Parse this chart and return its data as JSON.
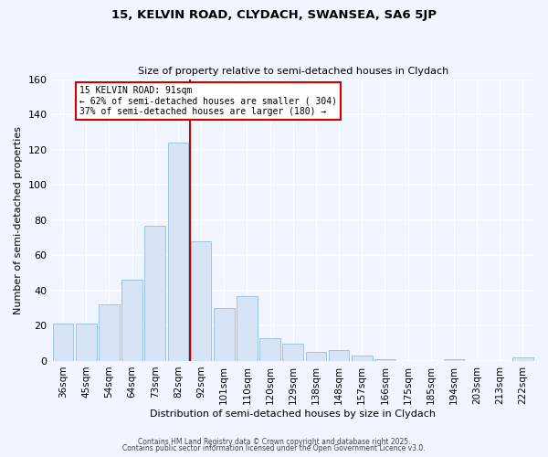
{
  "title": "15, KELVIN ROAD, CLYDACH, SWANSEA, SA6 5JP",
  "subtitle": "Size of property relative to semi-detached houses in Clydach",
  "xlabel": "Distribution of semi-detached houses by size in Clydach",
  "ylabel": "Number of semi-detached properties",
  "bar_labels": [
    "36sqm",
    "45sqm",
    "54sqm",
    "64sqm",
    "73sqm",
    "82sqm",
    "92sqm",
    "101sqm",
    "110sqm",
    "120sqm",
    "129sqm",
    "138sqm",
    "148sqm",
    "157sqm",
    "166sqm",
    "175sqm",
    "185sqm",
    "194sqm",
    "203sqm",
    "213sqm",
    "222sqm"
  ],
  "bar_values": [
    21,
    21,
    32,
    46,
    77,
    124,
    68,
    30,
    37,
    13,
    10,
    5,
    6,
    3,
    1,
    0,
    0,
    1,
    0,
    0,
    2
  ],
  "bar_color": "#d6e4f5",
  "bar_edge_color": "#9ec3e8",
  "vline_color": "#cc0000",
  "annotation_title": "15 KELVIN ROAD: 91sqm",
  "annotation_line1": "← 62% of semi-detached houses are smaller ( 304)",
  "annotation_line2": "37% of semi-detached houses are larger (180) →",
  "annotation_box_color": "#ffffff",
  "annotation_box_edge": "#cc0000",
  "ylim": [
    0,
    160
  ],
  "yticks": [
    0,
    20,
    40,
    60,
    80,
    100,
    120,
    140,
    160
  ],
  "footer1": "Contains HM Land Registry data © Crown copyright and database right 2025.",
  "footer2": "Contains public sector information licensed under the Open Government Licence v3.0.",
  "bg_color": "#f0f5ff"
}
